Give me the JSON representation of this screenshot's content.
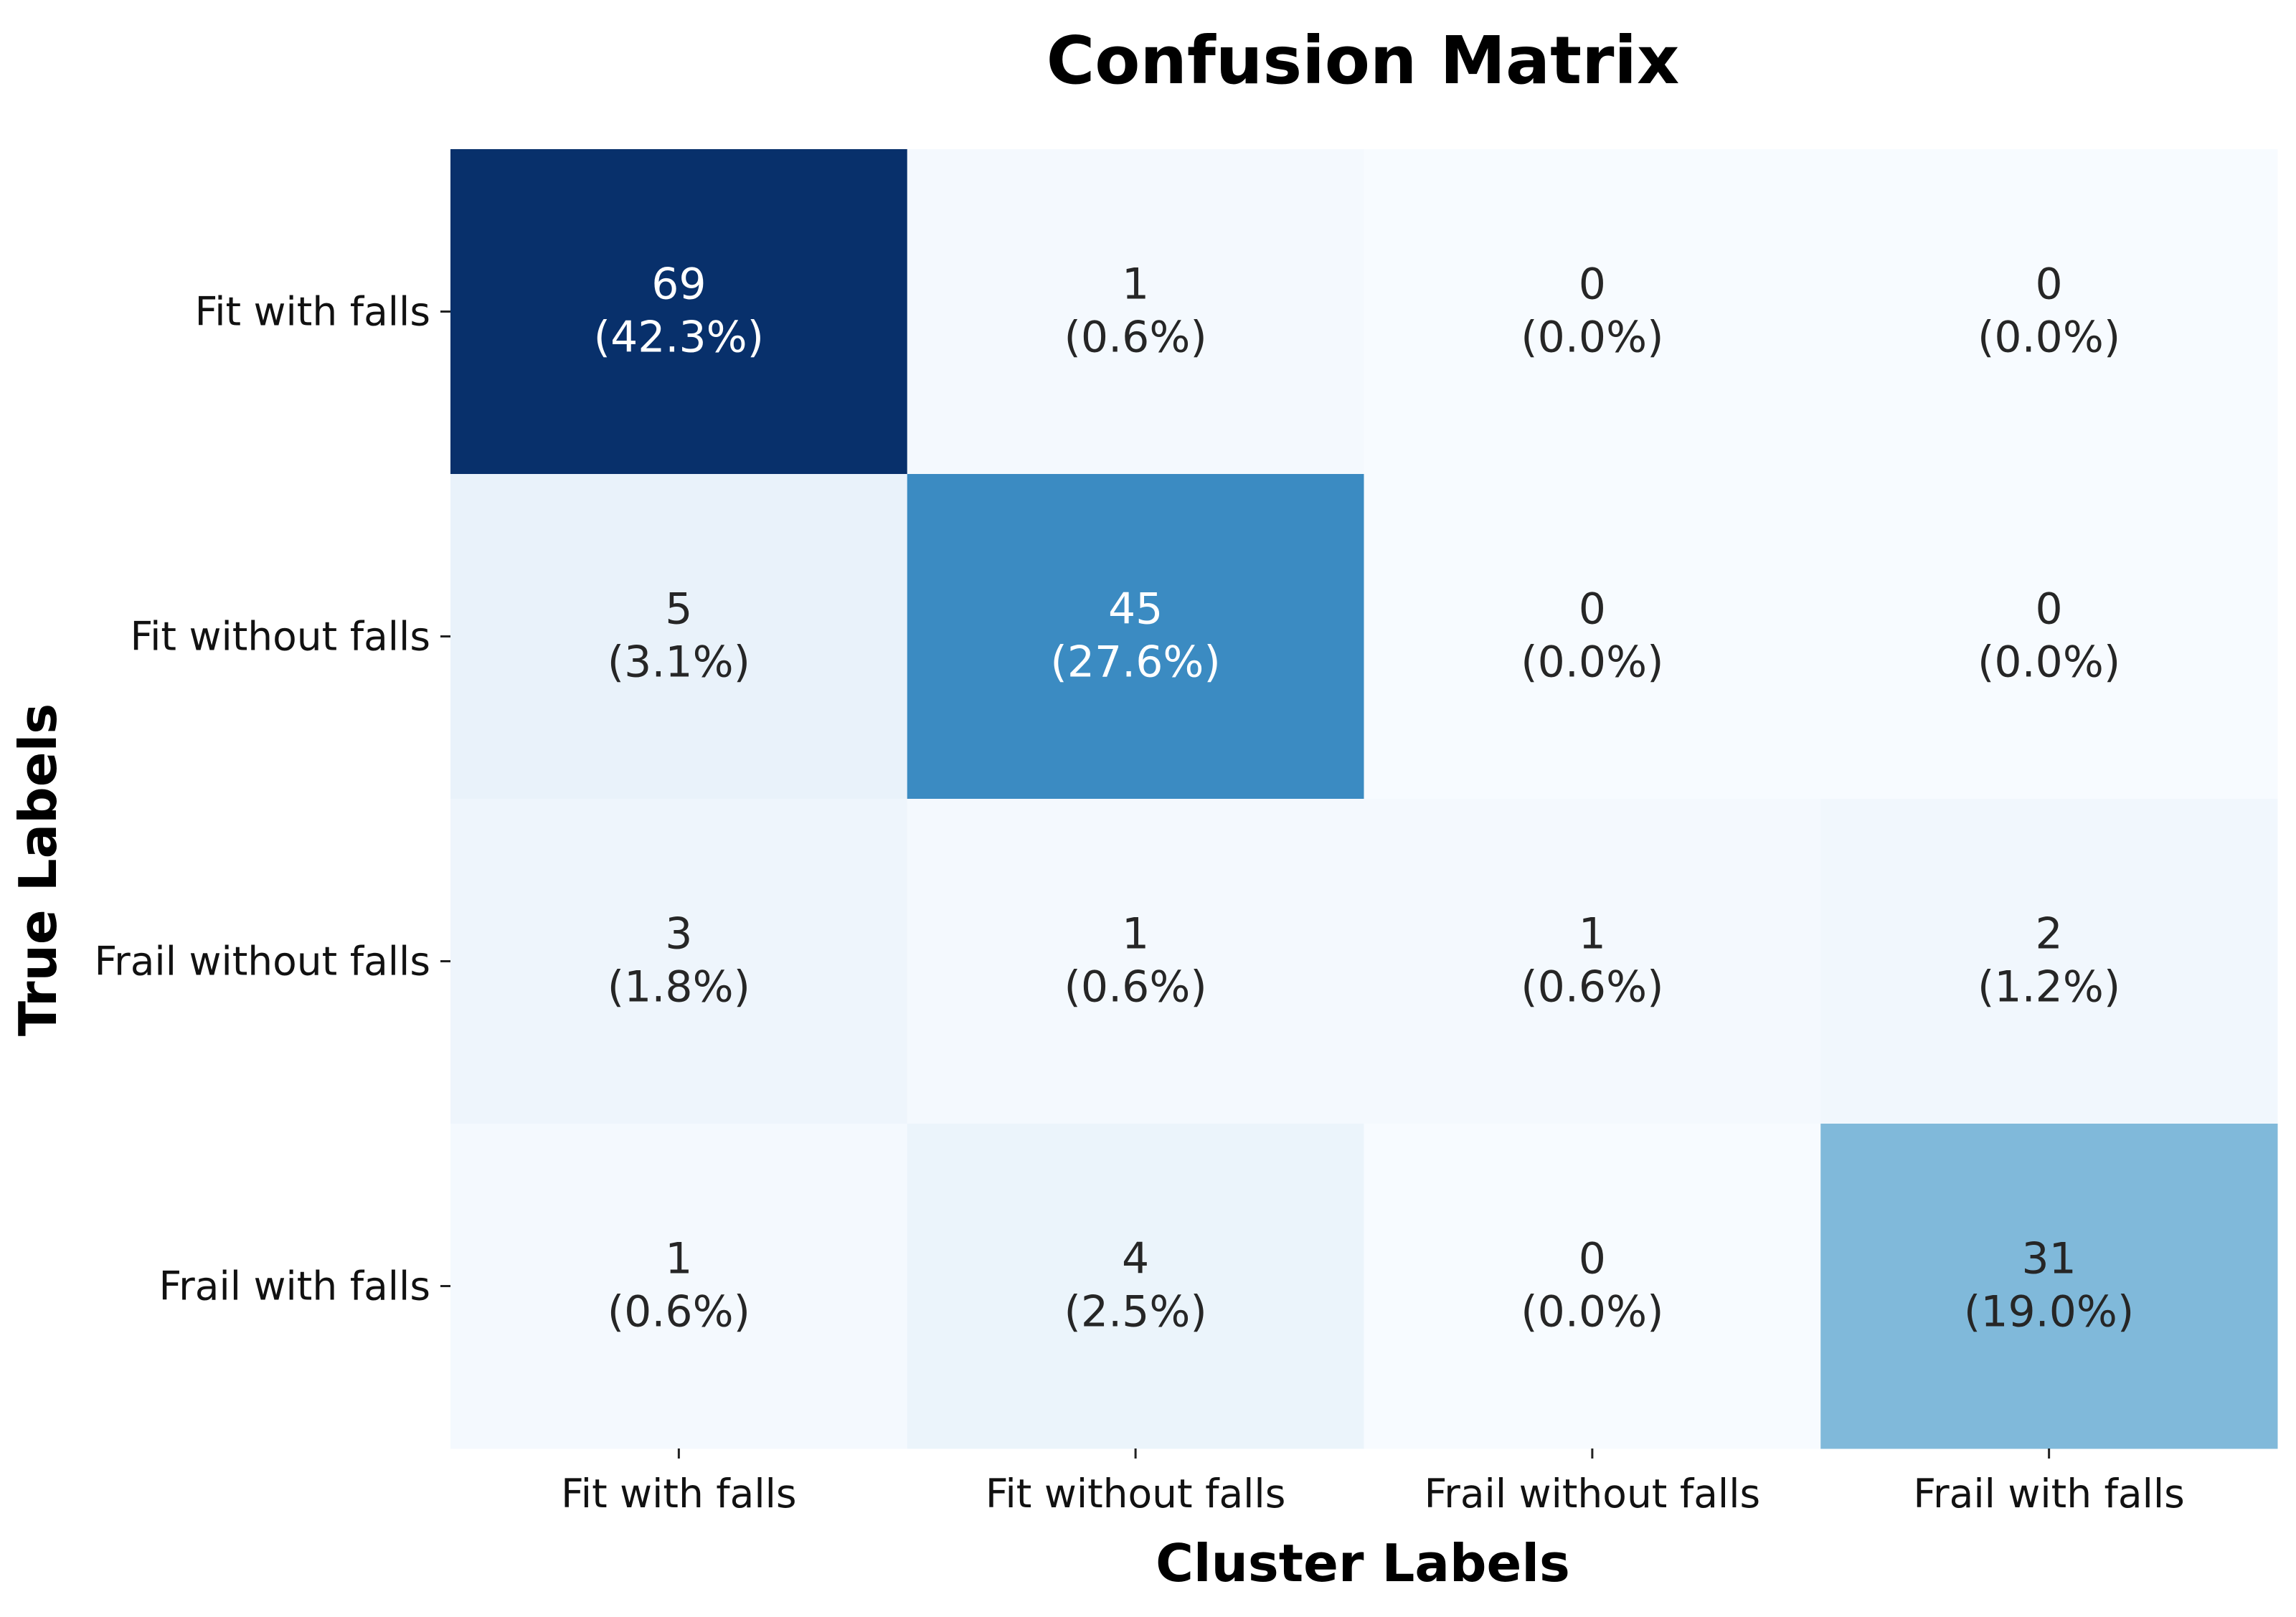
{
  "chart_data": {
    "type": "heatmap",
    "title": "Confusion Matrix",
    "xlabel": "Cluster Labels",
    "ylabel": "True Labels",
    "x_categories": [
      "Fit with falls",
      "Fit without falls",
      "Frail without falls",
      "Frail with falls"
    ],
    "y_categories": [
      "Fit with falls",
      "Fit without falls",
      "Frail without falls",
      "Frail with falls"
    ],
    "values": [
      [
        69,
        1,
        0,
        0
      ],
      [
        5,
        45,
        0,
        0
      ],
      [
        3,
        1,
        1,
        2
      ],
      [
        1,
        4,
        0,
        31
      ]
    ],
    "percent_labels": [
      [
        "(42.3%)",
        "(0.6%)",
        "(0.0%)",
        "(0.0%)"
      ],
      [
        "(3.1%)",
        "(27.6%)",
        "(0.0%)",
        "(0.0%)"
      ],
      [
        "(1.8%)",
        "(0.6%)",
        "(0.6%)",
        "(1.2%)"
      ],
      [
        "(0.6%)",
        "(2.5%)",
        "(0.0%)",
        "(19.0%)"
      ]
    ],
    "colormap": "Blues",
    "colorbar": false,
    "grid": false
  }
}
